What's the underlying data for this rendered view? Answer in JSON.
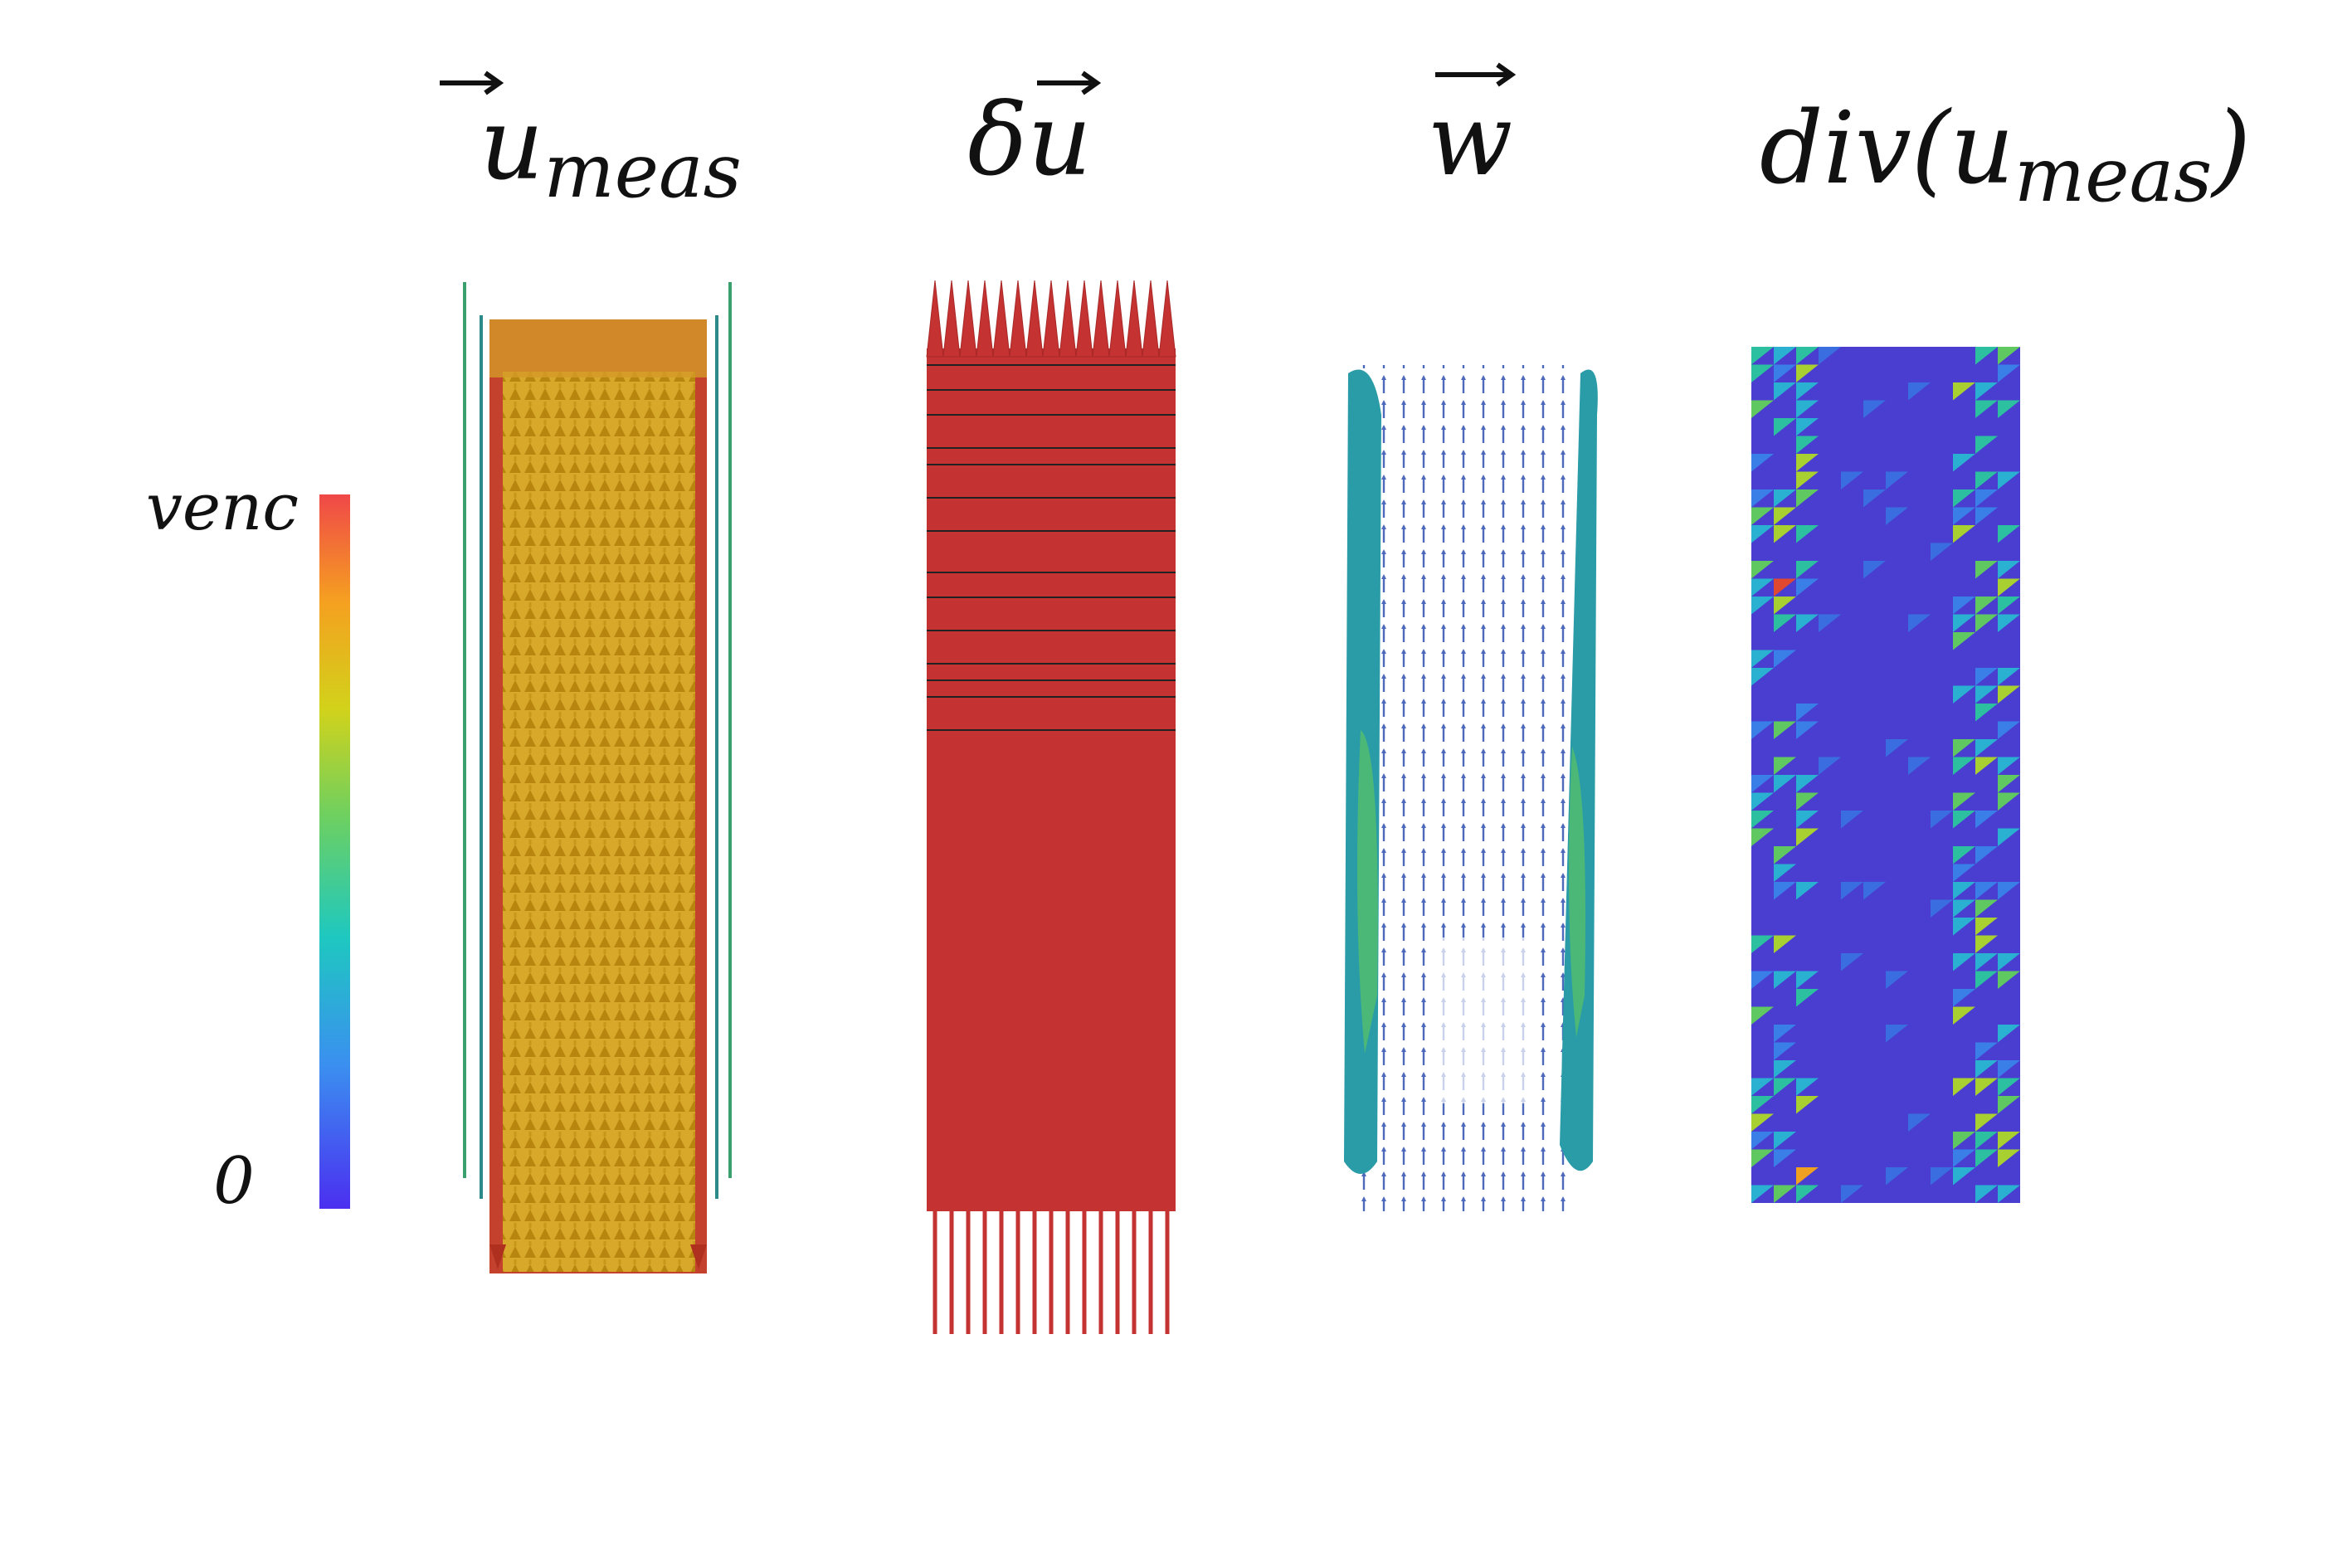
{
  "titles": [
    {
      "base": "u",
      "sub": "meas"
    },
    {
      "base": "δu"
    },
    {
      "base": "w"
    },
    {
      "base": "div(u",
      "sub": "meas",
      "close": ")"
    }
  ],
  "colorbar": {
    "top_label": "venc",
    "bottom_label": "0"
  }
}
